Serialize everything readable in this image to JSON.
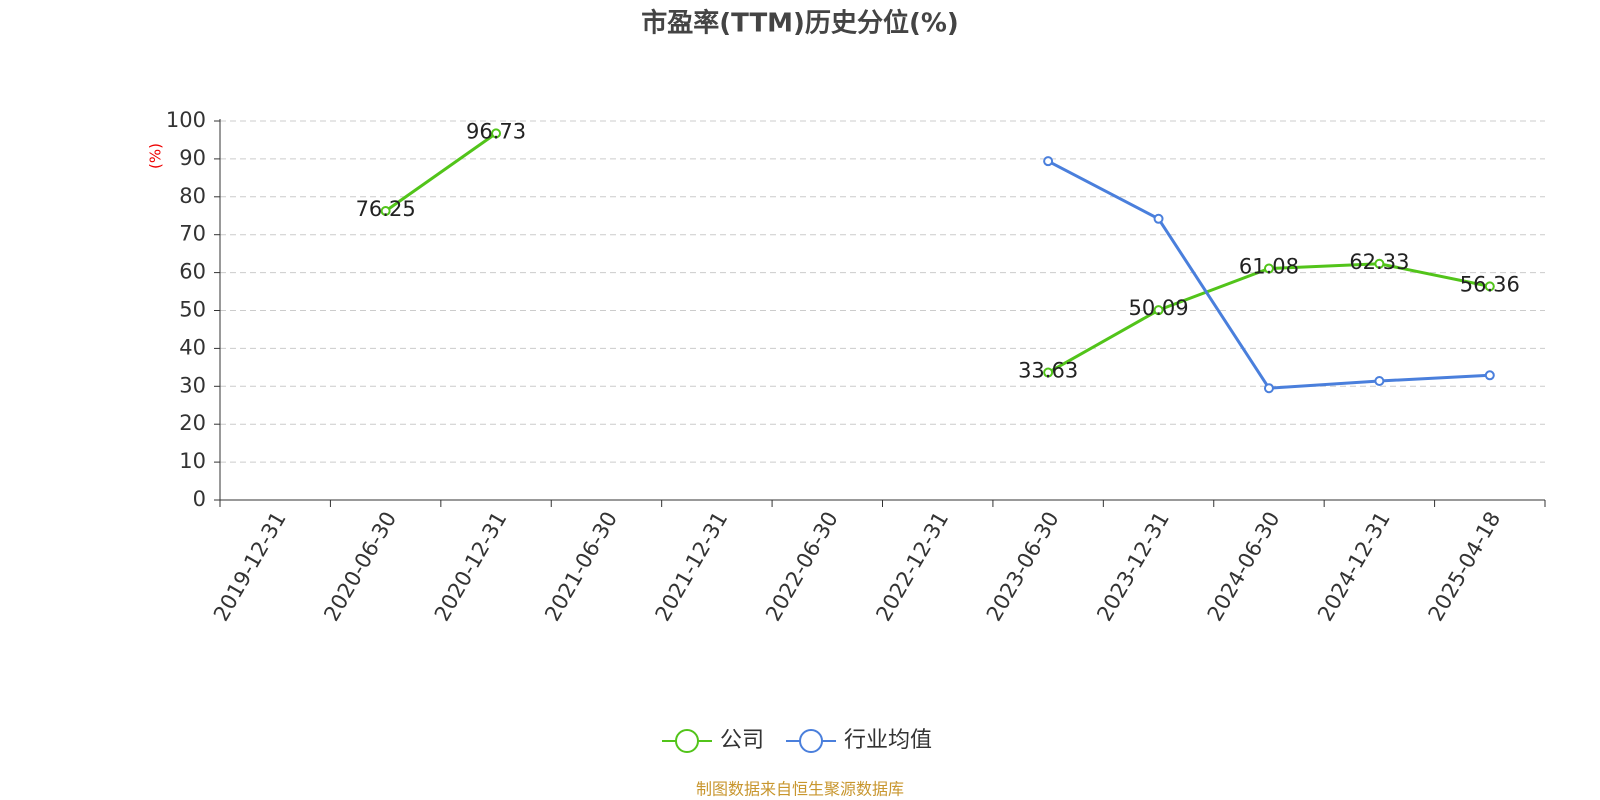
{
  "chart_data": {
    "type": "line",
    "title": "市盈率(TTM)历史分位(%)",
    "y_label": "(%)",
    "categories": [
      "2019-12-31",
      "2020-06-30",
      "2020-12-31",
      "2021-06-30",
      "2021-12-31",
      "2022-06-30",
      "2022-12-31",
      "2023-06-30",
      "2023-12-31",
      "2024-06-30",
      "2024-12-31",
      "2025-04-18"
    ],
    "series": [
      {
        "name": "公司",
        "color": "#52c41a",
        "show_labels": true,
        "values": [
          null,
          76.25,
          96.73,
          null,
          null,
          null,
          null,
          33.63,
          50.09,
          61.08,
          62.33,
          56.36
        ]
      },
      {
        "name": "行业均值",
        "color": "#4a7fdc",
        "show_labels": false,
        "values": [
          null,
          null,
          null,
          null,
          null,
          null,
          null,
          89.4,
          74.2,
          29.5,
          31.4,
          32.9
        ]
      }
    ],
    "ylim": [
      0,
      100
    ],
    "yticks": [
      0,
      10,
      20,
      30,
      40,
      50,
      60,
      70,
      80,
      90,
      100
    ],
    "grid": true,
    "legend": "bottom",
    "source": "制图数据来自恒生聚源数据库"
  }
}
